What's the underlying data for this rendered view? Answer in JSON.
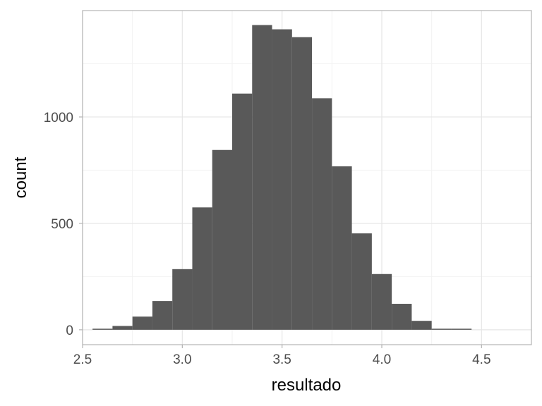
{
  "chart_data": {
    "type": "bar",
    "subtype": "histogram",
    "title": "",
    "xlabel": "resultado",
    "ylabel": "count",
    "xlim": [
      2.5,
      4.75
    ],
    "ylim": [
      -70,
      1500
    ],
    "x_ticks": [
      {
        "value": 2.5,
        "label": "2.5"
      },
      {
        "value": 3.0,
        "label": "3.0"
      },
      {
        "value": 3.5,
        "label": "3.5"
      },
      {
        "value": 4.0,
        "label": "4.0"
      },
      {
        "value": 4.5,
        "label": "4.5"
      }
    ],
    "y_ticks": [
      {
        "value": 0,
        "label": "0"
      },
      {
        "value": 500,
        "label": "500"
      },
      {
        "value": 1000,
        "label": "1000"
      }
    ],
    "bin_width": 0.1,
    "bins": [
      {
        "x0": 2.55,
        "x1": 2.65,
        "count": 5
      },
      {
        "x0": 2.65,
        "x1": 2.75,
        "count": 18
      },
      {
        "x0": 2.75,
        "x1": 2.85,
        "count": 62
      },
      {
        "x0": 2.85,
        "x1": 2.95,
        "count": 135
      },
      {
        "x0": 2.95,
        "x1": 3.05,
        "count": 285
      },
      {
        "x0": 3.05,
        "x1": 3.15,
        "count": 575
      },
      {
        "x0": 3.15,
        "x1": 3.25,
        "count": 845
      },
      {
        "x0": 3.25,
        "x1": 3.35,
        "count": 1110
      },
      {
        "x0": 3.35,
        "x1": 3.45,
        "count": 1432
      },
      {
        "x0": 3.45,
        "x1": 3.55,
        "count": 1412
      },
      {
        "x0": 3.55,
        "x1": 3.65,
        "count": 1375
      },
      {
        "x0": 3.65,
        "x1": 3.75,
        "count": 1088
      },
      {
        "x0": 3.75,
        "x1": 3.85,
        "count": 768
      },
      {
        "x0": 3.85,
        "x1": 3.95,
        "count": 453
      },
      {
        "x0": 3.95,
        "x1": 4.05,
        "count": 262
      },
      {
        "x0": 4.05,
        "x1": 4.15,
        "count": 122
      },
      {
        "x0": 4.15,
        "x1": 4.25,
        "count": 42
      },
      {
        "x0": 4.25,
        "x1": 4.35,
        "count": 5
      },
      {
        "x0": 4.35,
        "x1": 4.45,
        "count": 5
      }
    ],
    "grid": true,
    "legend": "none",
    "colors": {
      "bar": "#595959",
      "panel_border": "#b3b3b3",
      "grid_major": "#e6e6e6",
      "grid_minor": "#f2f2f2",
      "tick_text": "#4d4d4d"
    }
  }
}
